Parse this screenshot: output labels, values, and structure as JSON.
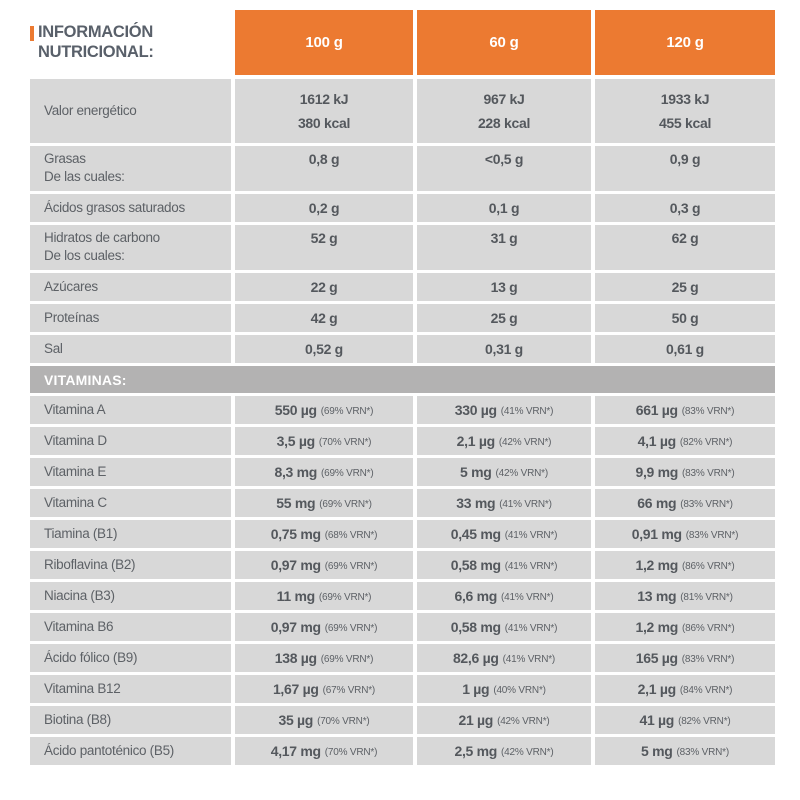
{
  "table": {
    "title": "INFORMACIÓN NUTRICIONAL:",
    "columns": [
      "100 g",
      "60 g",
      "120 g"
    ],
    "colors": {
      "accent": "#EC7A31",
      "cell": "#D8D8D8",
      "section_bar": "#B3B2B2",
      "title_text": "#59606A",
      "label_text": "#5D6166",
      "value_text": "#54585D",
      "header_text": "#FFFFFF"
    },
    "rows": [
      {
        "kind": "energy",
        "label": "Valor energético",
        "cells": [
          {
            "line1": "1612 kJ",
            "line2": "380 kcal"
          },
          {
            "line1": "967 kJ",
            "line2": "228 kcal"
          },
          {
            "line1": "1933 kJ",
            "line2": "455 kcal"
          }
        ]
      },
      {
        "kind": "double",
        "label": "Grasas",
        "sublabel": "De las cuales:",
        "cells": [
          {
            "line1": "0,8 g"
          },
          {
            "line1": "<0,5 g"
          },
          {
            "line1": "0,9 g"
          }
        ]
      },
      {
        "kind": "single",
        "label": "Ácidos grasos saturados",
        "cells": [
          {
            "line1": "0,2 g"
          },
          {
            "line1": "0,1 g"
          },
          {
            "line1": "0,3 g"
          }
        ]
      },
      {
        "kind": "double",
        "label": "Hidratos de carbono",
        "sublabel": "De los cuales:",
        "cells": [
          {
            "line1": "52 g"
          },
          {
            "line1": "31 g"
          },
          {
            "line1": "62 g"
          }
        ]
      },
      {
        "kind": "single",
        "label": "Azúcares",
        "cells": [
          {
            "line1": "22 g"
          },
          {
            "line1": "13 g"
          },
          {
            "line1": "25 g"
          }
        ]
      },
      {
        "kind": "single",
        "label": "Proteínas",
        "cells": [
          {
            "line1": "42 g"
          },
          {
            "line1": "25 g"
          },
          {
            "line1": "50 g"
          }
        ]
      },
      {
        "kind": "single",
        "label": "Sal",
        "cells": [
          {
            "line1": "0,52 g"
          },
          {
            "line1": "0,31 g"
          },
          {
            "line1": "0,61 g"
          }
        ]
      },
      {
        "kind": "section",
        "label": "VITAMINAS:"
      },
      {
        "kind": "vitamin",
        "label": "Vitamina A",
        "cells": [
          {
            "line1": "550 µg",
            "vrn": "(69% VRN*)"
          },
          {
            "line1": "330 µg",
            "vrn": "(41% VRN*)"
          },
          {
            "line1": "661 µg",
            "vrn": "(83% VRN*)"
          }
        ]
      },
      {
        "kind": "vitamin",
        "label": "Vitamina D",
        "cells": [
          {
            "line1": "3,5 µg",
            "vrn": "(70% VRN*)"
          },
          {
            "line1": "2,1 µg",
            "vrn": "(42% VRN*)"
          },
          {
            "line1": "4,1 µg",
            "vrn": "(82% VRN*)"
          }
        ]
      },
      {
        "kind": "vitamin",
        "label": "Vitamina E",
        "cells": [
          {
            "line1": "8,3 mg",
            "vrn": "(69% VRN*)"
          },
          {
            "line1": "5 mg",
            "vrn": "(42% VRN*)"
          },
          {
            "line1": "9,9 mg",
            "vrn": "(83% VRN*)"
          }
        ]
      },
      {
        "kind": "vitamin",
        "label": "Vitamina C",
        "cells": [
          {
            "line1": "55 mg",
            "vrn": "(69% VRN*)"
          },
          {
            "line1": "33 mg",
            "vrn": "(41% VRN*)"
          },
          {
            "line1": "66 mg",
            "vrn": "(83% VRN*)"
          }
        ]
      },
      {
        "kind": "vitamin",
        "label": "Tiamina (B1)",
        "cells": [
          {
            "line1": "0,75 mg",
            "vrn": "(68% VRN*)"
          },
          {
            "line1": "0,45 mg",
            "vrn": "(41% VRN*)"
          },
          {
            "line1": "0,91 mg",
            "vrn": "(83% VRN*)"
          }
        ]
      },
      {
        "kind": "vitamin",
        "label": "Riboflavina (B2)",
        "cells": [
          {
            "line1": "0,97 mg",
            "vrn": "(69% VRN*)"
          },
          {
            "line1": "0,58 mg",
            "vrn": "(41% VRN*)"
          },
          {
            "line1": "1,2 mg",
            "vrn": "(86% VRN*)"
          }
        ]
      },
      {
        "kind": "vitamin",
        "label": "Niacina (B3)",
        "cells": [
          {
            "line1": "11 mg",
            "vrn": "(69% VRN*)"
          },
          {
            "line1": "6,6 mg",
            "vrn": "(41% VRN*)"
          },
          {
            "line1": "13 mg",
            "vrn": "(81% VRN*)"
          }
        ]
      },
      {
        "kind": "vitamin",
        "label": "Vitamina B6",
        "cells": [
          {
            "line1": "0,97 mg",
            "vrn": "(69% VRN*)"
          },
          {
            "line1": "0,58 mg",
            "vrn": "(41% VRN*)"
          },
          {
            "line1": "1,2 mg",
            "vrn": "(86% VRN*)"
          }
        ]
      },
      {
        "kind": "vitamin",
        "label": "Ácido fólico (B9)",
        "cells": [
          {
            "line1": "138 µg",
            "vrn": "(69% VRN*)"
          },
          {
            "line1": "82,6 µg",
            "vrn": "(41% VRN*)"
          },
          {
            "line1": "165 µg",
            "vrn": "(83% VRN*)"
          }
        ]
      },
      {
        "kind": "vitamin",
        "label": "Vitamina B12",
        "cells": [
          {
            "line1": "1,67 µg",
            "vrn": "(67% VRN*)"
          },
          {
            "line1": "1 µg",
            "vrn": "(40% VRN*)"
          },
          {
            "line1": "2,1 µg",
            "vrn": "(84% VRN*)"
          }
        ]
      },
      {
        "kind": "vitamin",
        "label": "Biotina (B8)",
        "cells": [
          {
            "line1": "35 µg",
            "vrn": "(70% VRN*)"
          },
          {
            "line1": "21 µg",
            "vrn": "(42% VRN*)"
          },
          {
            "line1": "41 µg",
            "vrn": "(82% VRN*)"
          }
        ]
      },
      {
        "kind": "vitamin",
        "label": "Ácido pantoténico (B5)",
        "cells": [
          {
            "line1": "4,17 mg",
            "vrn": "(70% VRN*)"
          },
          {
            "line1": "2,5 mg",
            "vrn": "(42% VRN*)"
          },
          {
            "line1": "5 mg",
            "vrn": "(83% VRN*)"
          }
        ]
      }
    ]
  }
}
